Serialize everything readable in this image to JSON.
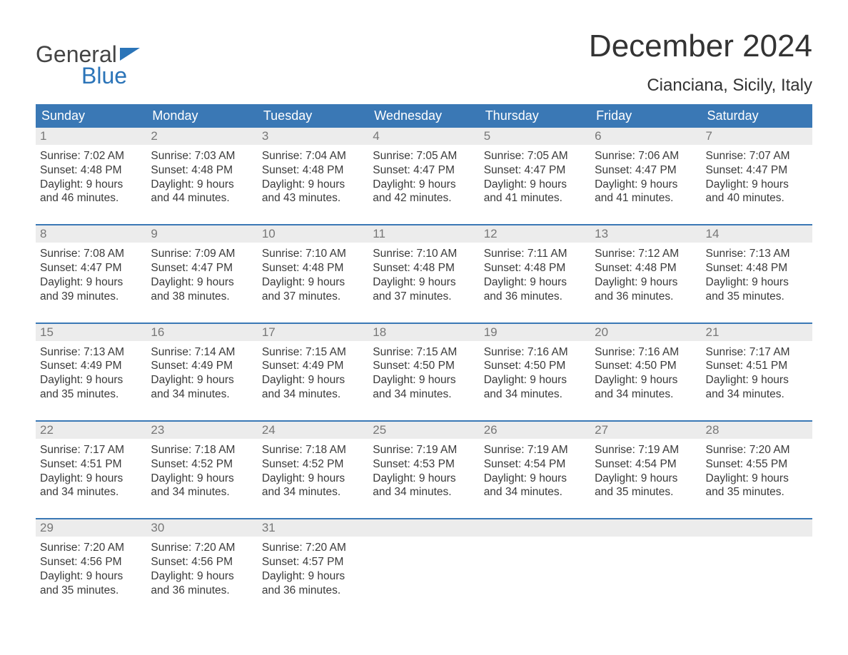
{
  "colors": {
    "header_bg": "#3a78b5",
    "header_text": "#ffffff",
    "daynum_bg": "#ececec",
    "daynum_text": "#777777",
    "border": "#3a78b5",
    "body_text": "#3a3a3a",
    "logo_gray": "#444444",
    "logo_blue": "#2b74b8",
    "page_bg": "#ffffff"
  },
  "typography": {
    "title_fontsize": 44,
    "subtitle_fontsize": 24,
    "weekday_fontsize": 18,
    "daynum_fontsize": 17,
    "body_fontsize": 15.5,
    "logo_fontsize": 32
  },
  "logo": {
    "line1": "General",
    "line2": "Blue"
  },
  "title": "December 2024",
  "location": "Cianciana, Sicily, Italy",
  "weekdays": [
    "Sunday",
    "Monday",
    "Tuesday",
    "Wednesday",
    "Thursday",
    "Friday",
    "Saturday"
  ],
  "weeks": [
    [
      {
        "n": "1",
        "sunrise": "Sunrise: 7:02 AM",
        "sunset": "Sunset: 4:48 PM",
        "d1": "Daylight: 9 hours",
        "d2": "and 46 minutes."
      },
      {
        "n": "2",
        "sunrise": "Sunrise: 7:03 AM",
        "sunset": "Sunset: 4:48 PM",
        "d1": "Daylight: 9 hours",
        "d2": "and 44 minutes."
      },
      {
        "n": "3",
        "sunrise": "Sunrise: 7:04 AM",
        "sunset": "Sunset: 4:48 PM",
        "d1": "Daylight: 9 hours",
        "d2": "and 43 minutes."
      },
      {
        "n": "4",
        "sunrise": "Sunrise: 7:05 AM",
        "sunset": "Sunset: 4:47 PM",
        "d1": "Daylight: 9 hours",
        "d2": "and 42 minutes."
      },
      {
        "n": "5",
        "sunrise": "Sunrise: 7:05 AM",
        "sunset": "Sunset: 4:47 PM",
        "d1": "Daylight: 9 hours",
        "d2": "and 41 minutes."
      },
      {
        "n": "6",
        "sunrise": "Sunrise: 7:06 AM",
        "sunset": "Sunset: 4:47 PM",
        "d1": "Daylight: 9 hours",
        "d2": "and 41 minutes."
      },
      {
        "n": "7",
        "sunrise": "Sunrise: 7:07 AM",
        "sunset": "Sunset: 4:47 PM",
        "d1": "Daylight: 9 hours",
        "d2": "and 40 minutes."
      }
    ],
    [
      {
        "n": "8",
        "sunrise": "Sunrise: 7:08 AM",
        "sunset": "Sunset: 4:47 PM",
        "d1": "Daylight: 9 hours",
        "d2": "and 39 minutes."
      },
      {
        "n": "9",
        "sunrise": "Sunrise: 7:09 AM",
        "sunset": "Sunset: 4:47 PM",
        "d1": "Daylight: 9 hours",
        "d2": "and 38 minutes."
      },
      {
        "n": "10",
        "sunrise": "Sunrise: 7:10 AM",
        "sunset": "Sunset: 4:48 PM",
        "d1": "Daylight: 9 hours",
        "d2": "and 37 minutes."
      },
      {
        "n": "11",
        "sunrise": "Sunrise: 7:10 AM",
        "sunset": "Sunset: 4:48 PM",
        "d1": "Daylight: 9 hours",
        "d2": "and 37 minutes."
      },
      {
        "n": "12",
        "sunrise": "Sunrise: 7:11 AM",
        "sunset": "Sunset: 4:48 PM",
        "d1": "Daylight: 9 hours",
        "d2": "and 36 minutes."
      },
      {
        "n": "13",
        "sunrise": "Sunrise: 7:12 AM",
        "sunset": "Sunset: 4:48 PM",
        "d1": "Daylight: 9 hours",
        "d2": "and 36 minutes."
      },
      {
        "n": "14",
        "sunrise": "Sunrise: 7:13 AM",
        "sunset": "Sunset: 4:48 PM",
        "d1": "Daylight: 9 hours",
        "d2": "and 35 minutes."
      }
    ],
    [
      {
        "n": "15",
        "sunrise": "Sunrise: 7:13 AM",
        "sunset": "Sunset: 4:49 PM",
        "d1": "Daylight: 9 hours",
        "d2": "and 35 minutes."
      },
      {
        "n": "16",
        "sunrise": "Sunrise: 7:14 AM",
        "sunset": "Sunset: 4:49 PM",
        "d1": "Daylight: 9 hours",
        "d2": "and 34 minutes."
      },
      {
        "n": "17",
        "sunrise": "Sunrise: 7:15 AM",
        "sunset": "Sunset: 4:49 PM",
        "d1": "Daylight: 9 hours",
        "d2": "and 34 minutes."
      },
      {
        "n": "18",
        "sunrise": "Sunrise: 7:15 AM",
        "sunset": "Sunset: 4:50 PM",
        "d1": "Daylight: 9 hours",
        "d2": "and 34 minutes."
      },
      {
        "n": "19",
        "sunrise": "Sunrise: 7:16 AM",
        "sunset": "Sunset: 4:50 PM",
        "d1": "Daylight: 9 hours",
        "d2": "and 34 minutes."
      },
      {
        "n": "20",
        "sunrise": "Sunrise: 7:16 AM",
        "sunset": "Sunset: 4:50 PM",
        "d1": "Daylight: 9 hours",
        "d2": "and 34 minutes."
      },
      {
        "n": "21",
        "sunrise": "Sunrise: 7:17 AM",
        "sunset": "Sunset: 4:51 PM",
        "d1": "Daylight: 9 hours",
        "d2": "and 34 minutes."
      }
    ],
    [
      {
        "n": "22",
        "sunrise": "Sunrise: 7:17 AM",
        "sunset": "Sunset: 4:51 PM",
        "d1": "Daylight: 9 hours",
        "d2": "and 34 minutes."
      },
      {
        "n": "23",
        "sunrise": "Sunrise: 7:18 AM",
        "sunset": "Sunset: 4:52 PM",
        "d1": "Daylight: 9 hours",
        "d2": "and 34 minutes."
      },
      {
        "n": "24",
        "sunrise": "Sunrise: 7:18 AM",
        "sunset": "Sunset: 4:52 PM",
        "d1": "Daylight: 9 hours",
        "d2": "and 34 minutes."
      },
      {
        "n": "25",
        "sunrise": "Sunrise: 7:19 AM",
        "sunset": "Sunset: 4:53 PM",
        "d1": "Daylight: 9 hours",
        "d2": "and 34 minutes."
      },
      {
        "n": "26",
        "sunrise": "Sunrise: 7:19 AM",
        "sunset": "Sunset: 4:54 PM",
        "d1": "Daylight: 9 hours",
        "d2": "and 34 minutes."
      },
      {
        "n": "27",
        "sunrise": "Sunrise: 7:19 AM",
        "sunset": "Sunset: 4:54 PM",
        "d1": "Daylight: 9 hours",
        "d2": "and 35 minutes."
      },
      {
        "n": "28",
        "sunrise": "Sunrise: 7:20 AM",
        "sunset": "Sunset: 4:55 PM",
        "d1": "Daylight: 9 hours",
        "d2": "and 35 minutes."
      }
    ],
    [
      {
        "n": "29",
        "sunrise": "Sunrise: 7:20 AM",
        "sunset": "Sunset: 4:56 PM",
        "d1": "Daylight: 9 hours",
        "d2": "and 35 minutes."
      },
      {
        "n": "30",
        "sunrise": "Sunrise: 7:20 AM",
        "sunset": "Sunset: 4:56 PM",
        "d1": "Daylight: 9 hours",
        "d2": "and 36 minutes."
      },
      {
        "n": "31",
        "sunrise": "Sunrise: 7:20 AM",
        "sunset": "Sunset: 4:57 PM",
        "d1": "Daylight: 9 hours",
        "d2": "and 36 minutes."
      },
      {
        "empty": true
      },
      {
        "empty": true
      },
      {
        "empty": true
      },
      {
        "empty": true
      }
    ]
  ]
}
